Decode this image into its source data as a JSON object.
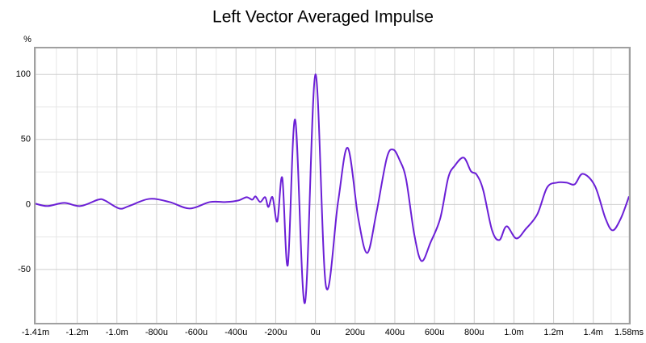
{
  "chart_data": {
    "type": "line",
    "title": "Left Vector Averaged Impulse",
    "y_label": "%",
    "x": [
      -1410,
      -1350,
      -1265,
      -1184,
      -1094,
      -1061,
      -988,
      -939,
      -837,
      -735,
      -633,
      -531,
      -449,
      -388,
      -347,
      -318,
      -302,
      -278,
      -253,
      -237,
      -216,
      -192,
      -167,
      -139,
      -102,
      -53,
      0,
      53,
      114,
      163,
      216,
      261,
      306,
      359,
      392,
      424,
      457,
      498,
      535,
      580,
      629,
      669,
      702,
      747,
      784,
      812,
      845,
      890,
      927,
      963,
      1012,
      1061,
      1118,
      1167,
      1216,
      1265,
      1306,
      1347,
      1408,
      1461,
      1498,
      1539,
      1580
    ],
    "series": [
      {
        "name": "Left Vector Averaged Impulse",
        "color": "#6b1fd6",
        "values": [
          0.6,
          -1.2,
          1.2,
          -1.2,
          3.7,
          3.1,
          -3.1,
          -1.2,
          4.3,
          1.9,
          -3.1,
          1.9,
          1.9,
          3.1,
          5.6,
          3.7,
          6.2,
          1.9,
          5.6,
          -1.9,
          5.6,
          -13,
          20.5,
          -46.6,
          65.2,
          -75.8,
          100,
          -62.7,
          1.9,
          43.5,
          -10.6,
          -37.3,
          -7.5,
          35.4,
          42.2,
          34.2,
          19.3,
          -23,
          -43.5,
          -29.2,
          -10.6,
          20.5,
          29.8,
          36,
          25.5,
          23,
          11.2,
          -19.9,
          -27.3,
          -16.8,
          -26.1,
          -18.6,
          -7.5,
          13,
          16.8,
          16.8,
          15.5,
          23.6,
          14.3,
          -10.6,
          -19.9,
          -10.6,
          6.2
        ]
      }
    ],
    "xlim": [
      -1410,
      1580
    ],
    "ylim": [
      -91,
      120
    ],
    "xticks": [
      {
        "value": -1410,
        "label": "-1.41m"
      },
      {
        "value": -1200,
        "label": "-1.2m"
      },
      {
        "value": -1000,
        "label": "-1.0m"
      },
      {
        "value": -800,
        "label": "-800u"
      },
      {
        "value": -600,
        "label": "-600u"
      },
      {
        "value": -400,
        "label": "-400u"
      },
      {
        "value": -200,
        "label": "-200u"
      },
      {
        "value": 0,
        "label": "0u"
      },
      {
        "value": 200,
        "label": "200u"
      },
      {
        "value": 400,
        "label": "400u"
      },
      {
        "value": 600,
        "label": "600u"
      },
      {
        "value": 800,
        "label": "800u"
      },
      {
        "value": 1000,
        "label": "1.0m"
      },
      {
        "value": 1200,
        "label": "1.2m"
      },
      {
        "value": 1400,
        "label": "1.4m"
      },
      {
        "value": 1580,
        "label": "1.58ms"
      }
    ],
    "yticks": [
      -50,
      0,
      50,
      100
    ],
    "grid": true
  }
}
